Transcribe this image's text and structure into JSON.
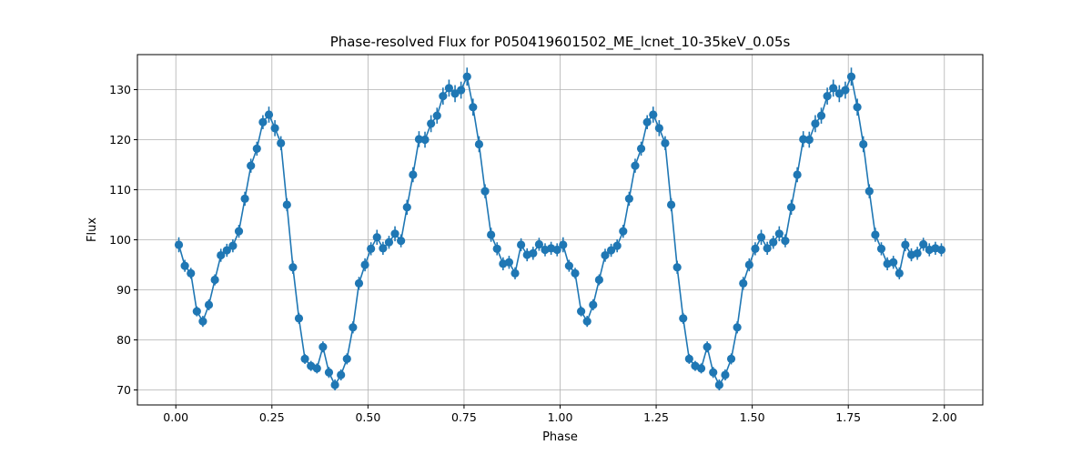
{
  "chart_data": {
    "type": "line",
    "title": "Phase-resolved Flux for P050419601502_ME_lcnet_10-35keV_0.05s",
    "xlabel": "Phase",
    "ylabel": "Flux",
    "xlim": [
      -0.1,
      2.1
    ],
    "ylim": [
      67,
      137
    ],
    "grid": true,
    "xticks": [
      0.0,
      0.25,
      0.5,
      0.75,
      1.0,
      1.25,
      1.5,
      1.75,
      2.0
    ],
    "xtick_labels": [
      "0.00",
      "0.25",
      "0.50",
      "0.75",
      "1.00",
      "1.25",
      "1.50",
      "1.75",
      "2.00"
    ],
    "yticks": [
      70,
      80,
      90,
      100,
      110,
      120,
      130
    ],
    "ytick_labels": [
      "70",
      "80",
      "90",
      "100",
      "110",
      "120",
      "130"
    ],
    "color": "#1f77b4",
    "series": [
      {
        "x": [
          0.0078,
          0.0234,
          0.0391,
          0.0547,
          0.0703,
          0.0859,
          0.1016,
          0.1172,
          0.1328,
          0.1484,
          0.1641,
          0.1797,
          0.1953,
          0.2109,
          0.2266,
          0.2422,
          0.2578,
          0.2734,
          0.2891,
          0.3047,
          0.3203,
          0.3359,
          0.3516,
          0.3672,
          0.3828,
          0.3984,
          0.4141,
          0.4297,
          0.4453,
          0.4609,
          0.4766,
          0.4922,
          0.5078,
          0.5234,
          0.5391,
          0.5547,
          0.5703,
          0.5859,
          0.6016,
          0.6172,
          0.6328,
          0.6484,
          0.6641,
          0.6797,
          0.6953,
          0.7109,
          0.7266,
          0.7422,
          0.7578,
          0.7734,
          0.7891,
          0.8047,
          0.8203,
          0.8359,
          0.8516,
          0.8672,
          0.8828,
          0.8984,
          0.9141,
          0.9297,
          0.9453,
          0.9609,
          0.9766,
          0.9922,
          1.0078,
          1.0234,
          1.0391,
          1.0547,
          1.0703,
          1.0859,
          1.1016,
          1.1172,
          1.1328,
          1.1484,
          1.1641,
          1.1797,
          1.1953,
          1.2109,
          1.2266,
          1.2422,
          1.2578,
          1.2734,
          1.2891,
          1.3047,
          1.3203,
          1.3359,
          1.3516,
          1.3672,
          1.3828,
          1.3984,
          1.4141,
          1.4297,
          1.4453,
          1.4609,
          1.4766,
          1.4922,
          1.5078,
          1.5234,
          1.5391,
          1.5547,
          1.5703,
          1.5859,
          1.6016,
          1.6172,
          1.6328,
          1.6484,
          1.6641,
          1.6797,
          1.6953,
          1.7109,
          1.7266,
          1.7422,
          1.7578,
          1.7734,
          1.7891,
          1.8047,
          1.8203,
          1.8359,
          1.8516,
          1.8672,
          1.8828,
          1.8984,
          1.9141,
          1.9297,
          1.9453,
          1.9609,
          1.9766,
          1.9922
        ],
        "values": [
          99.0,
          94.8,
          93.3,
          85.7,
          83.7,
          87.0,
          92.0,
          96.9,
          97.9,
          98.8,
          101.7,
          108.2,
          114.8,
          118.2,
          123.5,
          125.0,
          122.3,
          119.3,
          107.0,
          94.5,
          84.3,
          76.2,
          74.8,
          74.3,
          78.6,
          73.5,
          71.0,
          73.0,
          76.2,
          82.5,
          91.3,
          95.0,
          98.2,
          100.5,
          98.3,
          99.5,
          101.2,
          99.8,
          106.5,
          113.0,
          120.1,
          120.0,
          123.2,
          124.8,
          128.7,
          130.3,
          129.2,
          129.9,
          132.6,
          126.5,
          119.1,
          109.7,
          101.0,
          98.2,
          95.2,
          95.5,
          93.3,
          99.0,
          97.0,
          97.3,
          99.1,
          98.0,
          98.3,
          98.0,
          99.0,
          94.8,
          93.3,
          85.7,
          83.7,
          87.0,
          92.0,
          96.9,
          97.9,
          98.8,
          101.7,
          108.2,
          114.8,
          118.2,
          123.5,
          125.0,
          122.3,
          119.3,
          107.0,
          94.5,
          84.3,
          76.2,
          74.8,
          74.3,
          78.6,
          73.5,
          71.0,
          73.0,
          76.2,
          82.5,
          91.3,
          95.0,
          98.2,
          100.5,
          98.3,
          99.5,
          101.2,
          99.8,
          106.5,
          113.0,
          120.1,
          120.0,
          123.2,
          124.8,
          128.7,
          130.3,
          129.2,
          129.9,
          132.6,
          126.5,
          119.1,
          109.7,
          101.0,
          98.2,
          95.2,
          95.5,
          93.3,
          99.0,
          97.0,
          97.3,
          99.1,
          98.0,
          98.3,
          98.0
        ],
        "errors": [
          1.5,
          1.2,
          1.1,
          1.0,
          1.1,
          1.1,
          1.1,
          1.3,
          1.3,
          1.3,
          1.3,
          1.4,
          1.4,
          1.4,
          1.4,
          1.6,
          1.6,
          1.4,
          1.3,
          1.3,
          1.1,
          1.0,
          1.0,
          1.0,
          1.1,
          1.1,
          1.1,
          1.1,
          1.1,
          1.2,
          1.3,
          1.3,
          1.3,
          1.5,
          1.3,
          1.3,
          1.5,
          1.3,
          1.5,
          1.5,
          1.6,
          1.6,
          1.7,
          1.6,
          1.7,
          1.7,
          1.7,
          1.7,
          1.8,
          1.7,
          1.6,
          1.4,
          1.4,
          1.3,
          1.3,
          1.3,
          1.2,
          1.3,
          1.3,
          1.3,
          1.3,
          1.3,
          1.3,
          1.3,
          1.5,
          1.2,
          1.1,
          1.0,
          1.1,
          1.1,
          1.1,
          1.3,
          1.3,
          1.3,
          1.3,
          1.4,
          1.4,
          1.4,
          1.4,
          1.6,
          1.6,
          1.4,
          1.3,
          1.3,
          1.1,
          1.0,
          1.0,
          1.0,
          1.1,
          1.1,
          1.1,
          1.1,
          1.1,
          1.2,
          1.3,
          1.3,
          1.3,
          1.5,
          1.3,
          1.3,
          1.5,
          1.3,
          1.5,
          1.5,
          1.6,
          1.6,
          1.7,
          1.6,
          1.7,
          1.7,
          1.7,
          1.7,
          1.8,
          1.7,
          1.6,
          1.4,
          1.4,
          1.3,
          1.3,
          1.3,
          1.2,
          1.3,
          1.3,
          1.3,
          1.3,
          1.3,
          1.3,
          1.3
        ]
      }
    ]
  }
}
